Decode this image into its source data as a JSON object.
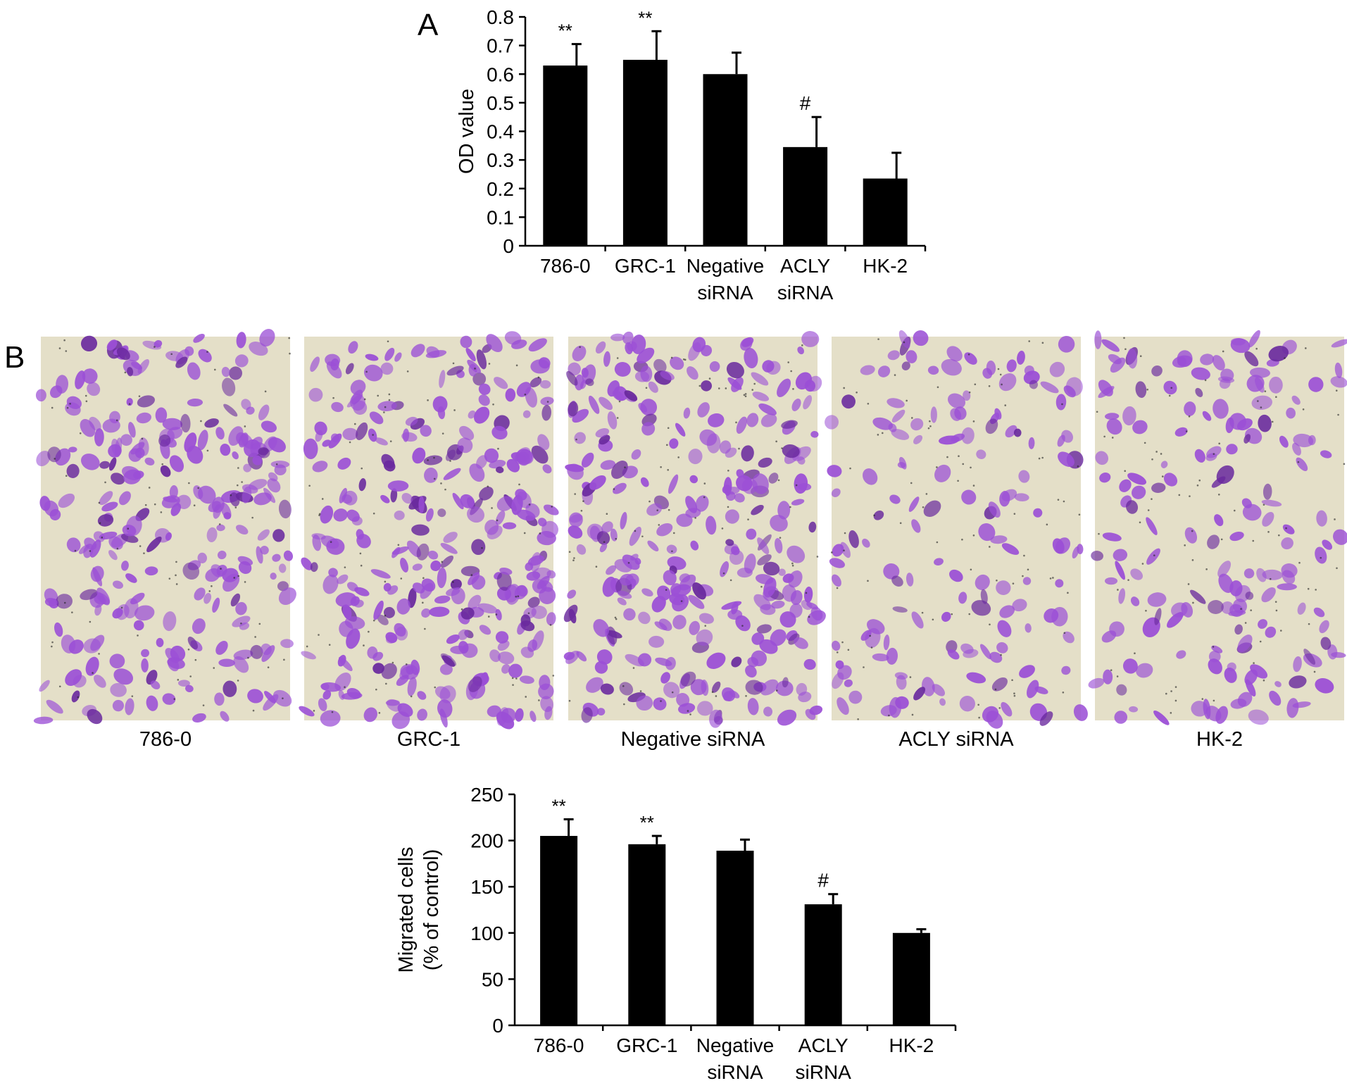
{
  "panels": {
    "a_label": "A",
    "b_label": "B"
  },
  "micrographs": {
    "captions": [
      "786-0",
      "GRC-1",
      "Negative siRNA",
      "ACLY siRNA",
      "HK-2"
    ],
    "colors": {
      "background": "#e4dfc8",
      "stain": "#9b4fd6",
      "stain_dark": "#6a2a9e"
    }
  },
  "chart_data": [
    {
      "type": "bar",
      "categories": [
        [
          "786-0"
        ],
        [
          "GRC-1"
        ],
        [
          "Negative",
          "siRNA"
        ],
        [
          "ACLY",
          "siRNA"
        ],
        [
          "HK-2"
        ]
      ],
      "values": [
        0.63,
        0.65,
        0.6,
        0.345,
        0.235
      ],
      "errors": [
        0.075,
        0.1,
        0.075,
        0.105,
        0.09
      ],
      "annotations": [
        "**",
        "**",
        "",
        "#",
        ""
      ],
      "ylabel": [
        "OD value"
      ],
      "ylim": [
        0,
        0.8
      ],
      "yticks": [
        "0",
        "0.1",
        "0.2",
        "0.3",
        "0.4",
        "0.5",
        "0.6",
        "0.7",
        "0.8"
      ],
      "bar_color": "#000000"
    },
    {
      "type": "bar",
      "categories": [
        [
          "786-0"
        ],
        [
          "GRC-1"
        ],
        [
          "Negative",
          "siRNA"
        ],
        [
          "ACLY",
          "siRNA"
        ],
        [
          "HK-2"
        ]
      ],
      "values": [
        205,
        196,
        189,
        131,
        100
      ],
      "errors": [
        18,
        9,
        12,
        11,
        4
      ],
      "annotations": [
        "**",
        "**",
        "",
        "#",
        ""
      ],
      "ylabel": [
        "Migrated cells",
        "(% of control)"
      ],
      "ylim": [
        0,
        250
      ],
      "yticks": [
        "0",
        "50",
        "100",
        "150",
        "200",
        "250"
      ],
      "bar_color": "#000000"
    }
  ]
}
